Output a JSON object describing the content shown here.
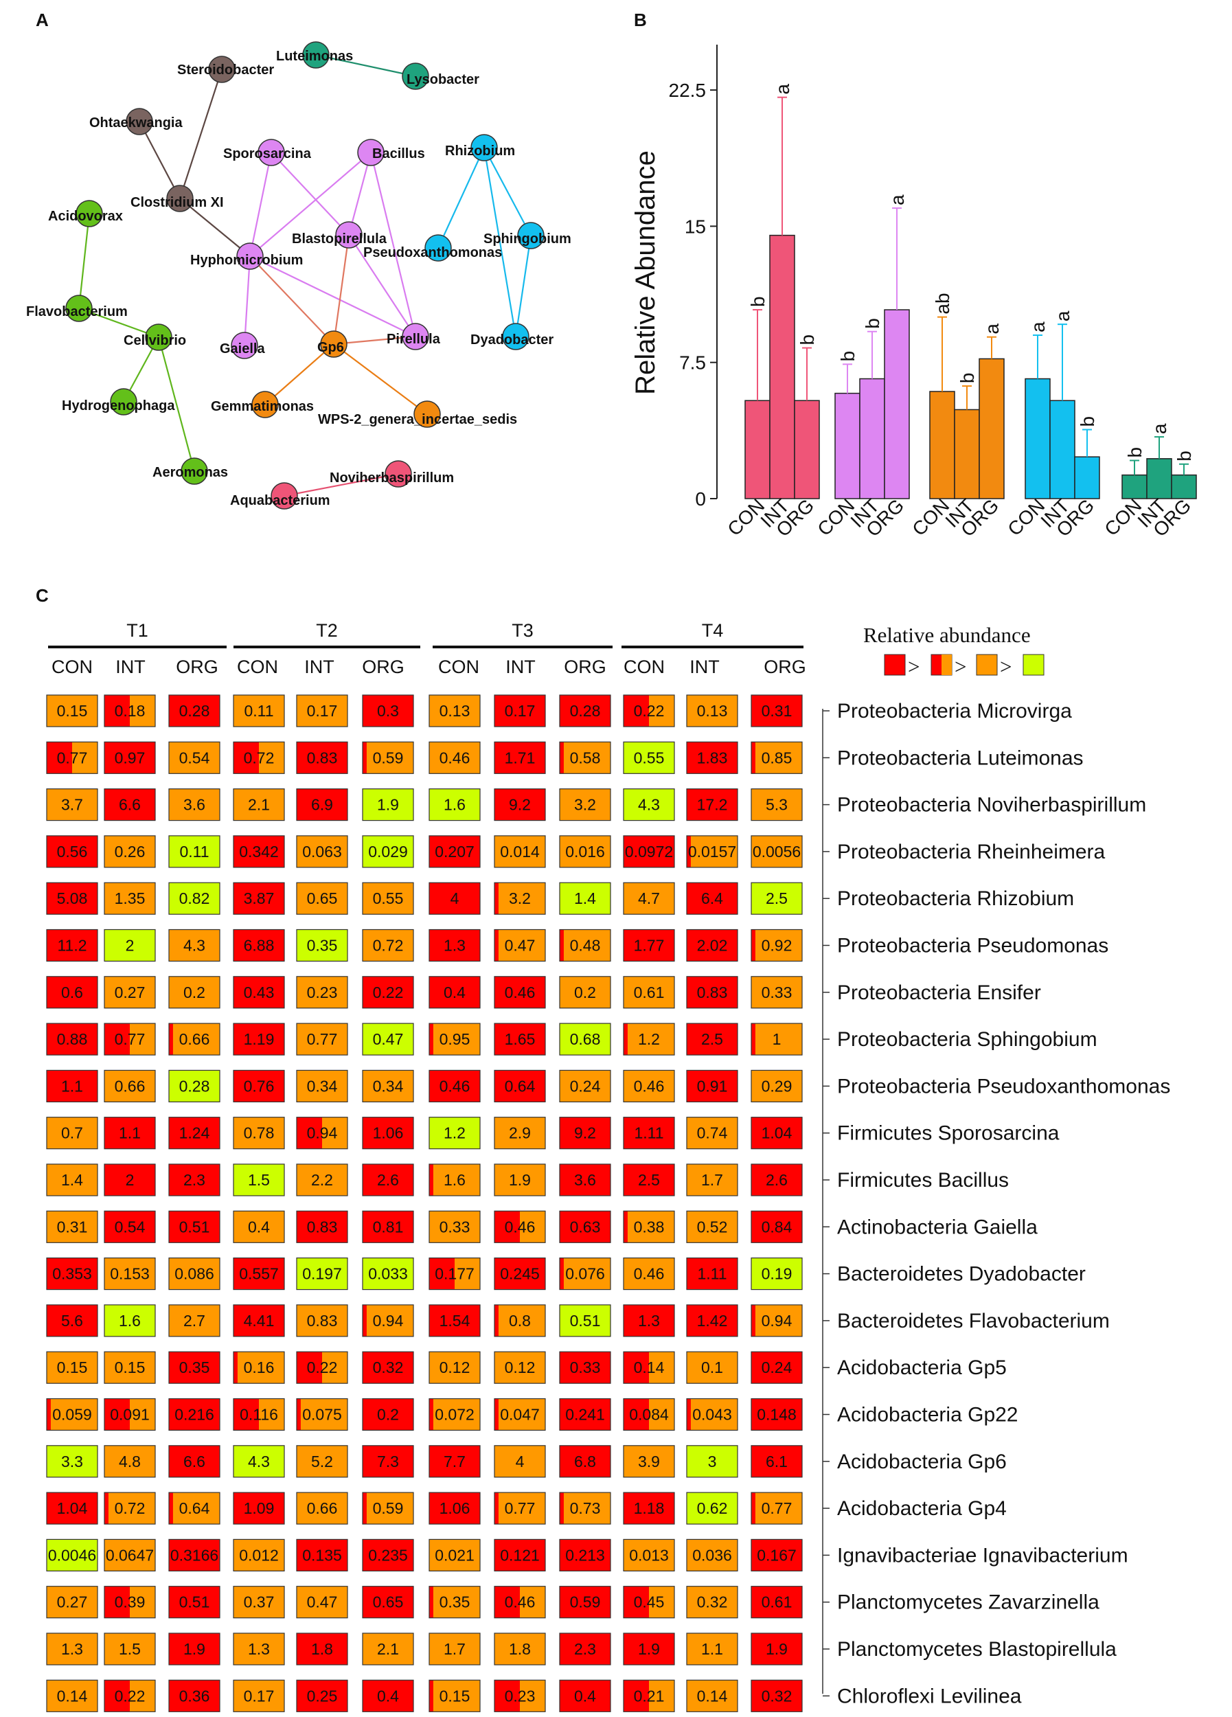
{
  "panels": {
    "a": "A",
    "b": "B",
    "c": "C"
  },
  "network": {
    "colors": {
      "brown": "#7a6460",
      "teal": "#1fa37e",
      "violet": "#dd86f2",
      "blue": "#13c0ef",
      "green": "#63c01a",
      "orange": "#f28a10",
      "pink": "#ef5578"
    },
    "nodes": [
      {
        "id": "steroidobacter",
        "label": "Steroidobacter",
        "group": "brown"
      },
      {
        "id": "ohtaekwangia",
        "label": "Ohtaekwangia",
        "group": "brown"
      },
      {
        "id": "clostridium",
        "label": "Clostridium XI",
        "group": "brown"
      },
      {
        "id": "luteimonas",
        "label": "Luteimonas",
        "group": "teal"
      },
      {
        "id": "lysobacter",
        "label": "Lysobacter",
        "group": "teal"
      },
      {
        "id": "sporosarcina",
        "label": "Sporosarcina",
        "group": "violet"
      },
      {
        "id": "bacillus",
        "label": "Bacillus",
        "group": "violet"
      },
      {
        "id": "blastopirellula",
        "label": "Blastopirellula",
        "group": "violet"
      },
      {
        "id": "hyphomicrobium",
        "label": "Hyphomicrobium",
        "group": "violet"
      },
      {
        "id": "gaiella",
        "label": "Gaiella",
        "group": "violet"
      },
      {
        "id": "pirellula",
        "label": "Pirellula",
        "group": "violet"
      },
      {
        "id": "rhizobium",
        "label": "Rhizobium",
        "group": "blue"
      },
      {
        "id": "pseudoxanthomonas",
        "label": "Pseudoxanthomonas",
        "group": "blue"
      },
      {
        "id": "sphingobium",
        "label": "Sphingobium",
        "group": "blue"
      },
      {
        "id": "dyadobacter",
        "label": "Dyadobacter",
        "group": "blue"
      },
      {
        "id": "acidovorax",
        "label": "Acidovorax",
        "group": "green"
      },
      {
        "id": "flavobacterium",
        "label": "Flavobacterium",
        "group": "green"
      },
      {
        "id": "cellvibrio",
        "label": "Cellvibrio",
        "group": "green"
      },
      {
        "id": "hydrogenophaga",
        "label": "Hydrogenophaga",
        "group": "green"
      },
      {
        "id": "aeromonas",
        "label": "Aeromonas",
        "group": "green"
      },
      {
        "id": "gp6",
        "label": "Gp6",
        "group": "orange"
      },
      {
        "id": "gemmatimonas",
        "label": "Gemmatimonas",
        "group": "orange"
      },
      {
        "id": "wps2",
        "label": "WPS-2_genera_incertae_sedis",
        "group": "orange"
      },
      {
        "id": "noviherbaspirillum",
        "label": "Noviherbaspirillum",
        "group": "pink"
      },
      {
        "id": "aquabacterium",
        "label": "Aquabacterium",
        "group": "pink"
      }
    ],
    "edges": [
      {
        "from": "steroidobacter",
        "to": "clostridium",
        "color": "brown"
      },
      {
        "from": "ohtaekwangia",
        "to": "clostridium",
        "color": "brown"
      },
      {
        "from": "clostridium",
        "to": "hyphomicrobium",
        "color": "brown"
      },
      {
        "from": "luteimonas",
        "to": "lysobacter",
        "color": "teal"
      },
      {
        "from": "sporosarcina",
        "to": "hyphomicrobium",
        "color": "violet"
      },
      {
        "from": "sporosarcina",
        "to": "blastopirellula",
        "color": "violet"
      },
      {
        "from": "bacillus",
        "to": "hyphomicrobium",
        "color": "violet"
      },
      {
        "from": "bacillus",
        "to": "blastopirellula",
        "color": "violet"
      },
      {
        "from": "bacillus",
        "to": "pirellula",
        "color": "violet"
      },
      {
        "from": "blastopirellula",
        "to": "pirellula",
        "color": "violet"
      },
      {
        "from": "hyphomicrobium",
        "to": "gaiella",
        "color": "violet"
      },
      {
        "from": "hyphomicrobium",
        "to": "pirellula",
        "color": "violet"
      },
      {
        "from": "hyphomicrobium",
        "to": "gp6",
        "color": "salmon"
      },
      {
        "from": "blastopirellula",
        "to": "gp6",
        "color": "salmon"
      },
      {
        "from": "gp6",
        "to": "pirellula",
        "color": "salmon"
      },
      {
        "from": "gp6",
        "to": "gemmatimonas",
        "color": "orange"
      },
      {
        "from": "gp6",
        "to": "wps2",
        "color": "orange"
      },
      {
        "from": "rhizobium",
        "to": "pseudoxanthomonas",
        "color": "blue"
      },
      {
        "from": "rhizobium",
        "to": "sphingobium",
        "color": "blue"
      },
      {
        "from": "rhizobium",
        "to": "dyadobacter",
        "color": "blue"
      },
      {
        "from": "sphingobium",
        "to": "dyadobacter",
        "color": "blue"
      },
      {
        "from": "acidovorax",
        "to": "flavobacterium",
        "color": "green"
      },
      {
        "from": "flavobacterium",
        "to": "cellvibrio",
        "color": "green"
      },
      {
        "from": "cellvibrio",
        "to": "hydrogenophaga",
        "color": "green"
      },
      {
        "from": "cellvibrio",
        "to": "aeromonas",
        "color": "green"
      },
      {
        "from": "noviherbaspirillum",
        "to": "aquabacterium",
        "color": "pink"
      }
    ]
  },
  "chart_data": {
    "type": "bar",
    "ylabel": "Relative Abundance",
    "ylim": [
      0,
      25
    ],
    "yticks": [
      "0",
      "7.5",
      "15",
      "22.5"
    ],
    "ytick_values": [
      0,
      7.5,
      15,
      22.5
    ],
    "categories": [
      "CON",
      "INT",
      "ORG"
    ],
    "groups": [
      {
        "name": "pink",
        "color": "#ef5578",
        "values": [
          5.4,
          14.5,
          5.4
        ],
        "errors": [
          5.0,
          7.6,
          2.9
        ],
        "letters": [
          "b",
          "a",
          "b"
        ]
      },
      {
        "name": "violet",
        "color": "#dd86f2",
        "values": [
          5.8,
          6.6,
          10.4
        ],
        "errors": [
          1.6,
          2.6,
          5.6
        ],
        "letters": [
          "b",
          "b",
          "a"
        ]
      },
      {
        "name": "orange",
        "color": "#f28a10",
        "values": [
          5.9,
          4.9,
          7.7
        ],
        "errors": [
          4.1,
          1.3,
          1.2
        ],
        "letters": [
          "ab",
          "b",
          "a"
        ]
      },
      {
        "name": "blue",
        "color": "#13c0ef",
        "values": [
          6.6,
          5.4,
          2.3
        ],
        "errors": [
          2.4,
          4.2,
          1.5
        ],
        "letters": [
          "a",
          "a",
          "b"
        ]
      },
      {
        "name": "teal",
        "color": "#1fa37e",
        "values": [
          1.3,
          2.2,
          1.3
        ],
        "errors": [
          0.8,
          1.2,
          0.6
        ],
        "letters": [
          "b",
          "a",
          "b"
        ]
      }
    ]
  },
  "heatmap": {
    "legend": {
      "title": "Relative  abundance",
      "sign": ">"
    },
    "colors": {
      "red": "#ff0000",
      "orange": "#ff9900",
      "green": "#ccff00"
    },
    "timepoints": [
      "T1",
      "T2",
      "T3",
      "T4"
    ],
    "treatments": [
      "CON",
      "INT",
      "ORG"
    ],
    "rows": [
      {
        "label": "Proteobacteria Microvirga",
        "v": [
          "0.15",
          "0.18",
          "0.28",
          "0.11",
          "0.17",
          "0.3",
          "0.13",
          "0.17",
          "0.28",
          "0.22",
          "0.13",
          "0.31"
        ],
        "c": "OHROORORRHOR"
      },
      {
        "label": "Proteobacteria Luteimonas",
        "v": [
          "0.77",
          "0.97",
          "0.54",
          "0.72",
          "0.83",
          "0.59",
          "0.46",
          "1.71",
          "0.58",
          "0.55",
          "1.83",
          "0.85"
        ],
        "c": "HROHRXORXGRX"
      },
      {
        "label": "Proteobacteria Noviherbaspirillum",
        "v": [
          "3.7",
          "6.6",
          "3.6",
          "2.1",
          "6.9",
          "1.9",
          "1.6",
          "9.2",
          "3.2",
          "4.3",
          "17.2",
          "5.3"
        ],
        "c": "OROORGGROGRO"
      },
      {
        "label": "Proteobacteria Rheinheimera",
        "v": [
          "0.56",
          "0.26",
          "0.11",
          "0.342",
          "0.063",
          "0.029",
          "0.207",
          "0.014",
          "0.016",
          "0.0972",
          "0.0157",
          "0.0056"
        ],
        "c": "ROGROGROORXO"
      },
      {
        "label": "Proteobacteria Rhizobium",
        "v": [
          "5.08",
          "1.35",
          "0.82",
          "3.87",
          "0.65",
          "0.55",
          "4",
          "3.2",
          "1.4",
          "4.7",
          "6.4",
          "2.5"
        ],
        "c": "ROGROORXGORG"
      },
      {
        "label": "Proteobacteria Pseudomonas",
        "v": [
          "11.2",
          "2",
          "4.3",
          "6.88",
          "0.35",
          "0.72",
          "1.3",
          "0.47",
          "0.48",
          "1.77",
          "2.02",
          "0.92"
        ],
        "c": "RGORGORXXRRX"
      },
      {
        "label": "Proteobacteria Ensifer",
        "v": [
          "0.6",
          "0.27",
          "0.2",
          "0.43",
          "0.23",
          "0.22",
          "0.4",
          "0.46",
          "0.2",
          "0.61",
          "0.83",
          "0.33"
        ],
        "c": "ROORORRROORO"
      },
      {
        "label": "Proteobacteria Sphingobium",
        "v": [
          "0.88",
          "0.77",
          "0.66",
          "1.19",
          "0.77",
          "0.47",
          "0.95",
          "1.65",
          "0.68",
          "1.2",
          "2.5",
          "1"
        ],
        "c": "RHXROGXRGXRX"
      },
      {
        "label": "Proteobacteria Pseudoxanthomonas",
        "v": [
          "1.1",
          "0.66",
          "0.28",
          "0.76",
          "0.34",
          "0.34",
          "0.46",
          "0.64",
          "0.24",
          "0.46",
          "0.91",
          "0.29"
        ],
        "c": "ROGROORROORO"
      },
      {
        "label": "Firmicutes Sporosarcina",
        "v": [
          "0.7",
          "1.1",
          "1.24",
          "0.78",
          "0.94",
          "1.06",
          "1.2",
          "2.9",
          "9.2",
          "1.11",
          "0.74",
          "1.04"
        ],
        "c": "ORROHRGORROR"
      },
      {
        "label": "Firmicutes Bacillus",
        "v": [
          "1.4",
          "2",
          "2.3",
          "1.5",
          "2.2",
          "2.6",
          "1.6",
          "1.9",
          "3.6",
          "2.5",
          "1.7",
          "2.6"
        ],
        "c": "ORRGORXORROR"
      },
      {
        "label": "Actinobacteria Gaiella",
        "v": [
          "0.31",
          "0.54",
          "0.51",
          "0.4",
          "0.83",
          "0.81",
          "0.33",
          "0.46",
          "0.63",
          "0.38",
          "0.52",
          "0.84"
        ],
        "c": "ORRORROHRXOR"
      },
      {
        "label": "Bacteroidetes Dyadobacter",
        "v": [
          "0.353",
          "0.153",
          "0.086",
          "0.557",
          "0.197",
          "0.033",
          "0.177",
          "0.245",
          "0.076",
          "0.46",
          "1.11",
          "0.19"
        ],
        "c": "ROORGGHRXORG"
      },
      {
        "label": "Bacteroidetes Flavobacterium",
        "v": [
          "5.6",
          "1.6",
          "2.7",
          "4.41",
          "0.83",
          "0.94",
          "1.54",
          "0.8",
          "0.51",
          "1.3",
          "1.42",
          "0.94"
        ],
        "c": "RGOROXRXGRRX"
      },
      {
        "label": "Acidobacteria Gp5",
        "v": [
          "0.15",
          "0.15",
          "0.35",
          "0.16",
          "0.22",
          "0.32",
          "0.12",
          "0.12",
          "0.33",
          "0.14",
          "0.1",
          "0.24"
        ],
        "c": "OORXHROORHOR"
      },
      {
        "label": "Acidobacteria Gp22",
        "v": [
          "0.059",
          "0.091",
          "0.216",
          "0.116",
          "0.075",
          "0.2",
          "0.072",
          "0.047",
          "0.241",
          "0.084",
          "0.043",
          "0.148"
        ],
        "c": "XHRHXRXXRHXR"
      },
      {
        "label": "Acidobacteria Gp6",
        "v": [
          "3.3",
          "4.8",
          "6.6",
          "4.3",
          "5.2",
          "7.3",
          "7.7",
          "4",
          "6.8",
          "3.9",
          "3",
          "6.1"
        ],
        "c": "GORGORROROGR"
      },
      {
        "label": "Acidobacteria Gp4",
        "v": [
          "1.04",
          "0.72",
          "0.64",
          "1.09",
          "0.66",
          "0.59",
          "1.06",
          "0.77",
          "0.73",
          "1.18",
          "0.62",
          "0.77"
        ],
        "c": "RXXROXRXXRGX"
      },
      {
        "label": "Ignavibacteriae Ignavibacterium",
        "v": [
          "0.0046",
          "0.0647",
          "0.3166",
          "0.012",
          "0.135",
          "0.235",
          "0.021",
          "0.121",
          "0.213",
          "0.013",
          "0.036",
          "0.167"
        ],
        "c": "GORORRORROOR"
      },
      {
        "label": "Planctomycetes Zavarzinella",
        "v": [
          "0.27",
          "0.39",
          "0.51",
          "0.37",
          "0.47",
          "0.65",
          "0.35",
          "0.46",
          "0.59",
          "0.45",
          "0.32",
          "0.61"
        ],
        "c": "OHROORXHRHOR"
      },
      {
        "label": "Planctomycetes Blastopirellula",
        "v": [
          "1.3",
          "1.5",
          "1.9",
          "1.3",
          "1.8",
          "2.1",
          "1.7",
          "1.8",
          "2.3",
          "1.9",
          "1.1",
          "1.9"
        ],
        "c": "OOROROOORROR"
      },
      {
        "label": "Chloroflexi Levilinea",
        "v": [
          "0.14",
          "0.22",
          "0.36",
          "0.17",
          "0.25",
          "0.4",
          "0.15",
          "0.23",
          "0.4",
          "0.21",
          "0.14",
          "0.32"
        ],
        "c": "OHRORRXHRHOR"
      }
    ]
  }
}
